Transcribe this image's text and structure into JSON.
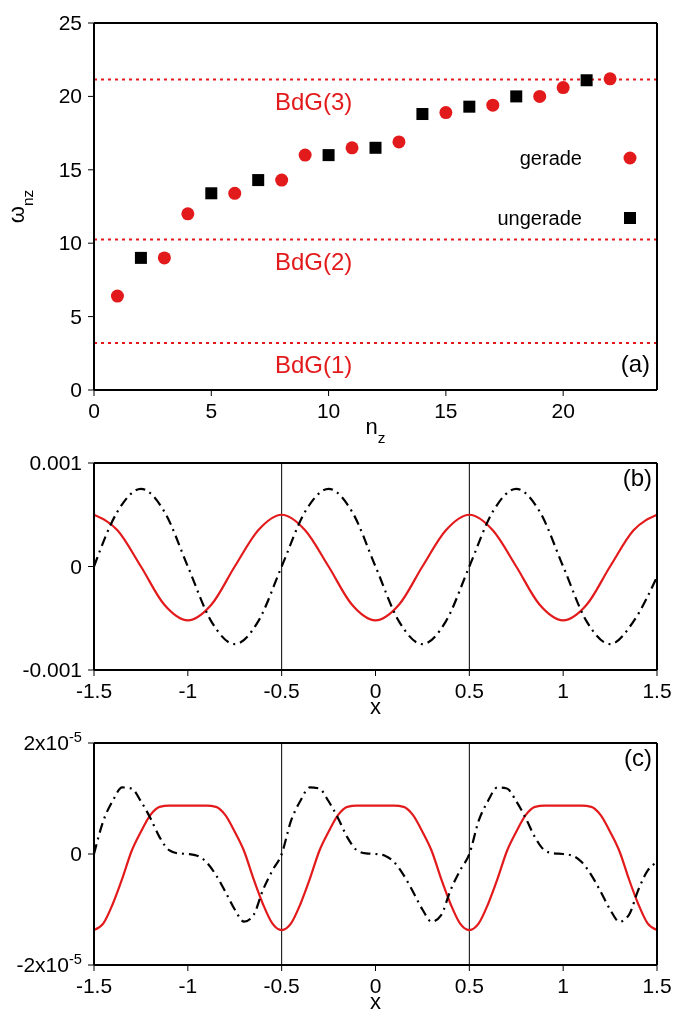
{
  "chart_data": [
    {
      "type": "scatter",
      "xlabel": "n$_{z}$",
      "ylabel": "ω$_{n}$$_{z}$",
      "xlim": [
        0,
        24
      ],
      "xticks": [
        0,
        5,
        10,
        15,
        20
      ],
      "ylim": [
        0,
        25
      ],
      "yticks": [
        0,
        5,
        10,
        15,
        20,
        25
      ],
      "legend": "right",
      "annotations": [
        "(a)"
      ],
      "series": [
        {
          "name": "gerade",
          "color": "#e31a1c",
          "marker": "circle",
          "x": [
            1,
            3,
            4,
            6,
            8,
            9,
            11,
            13,
            15,
            17,
            19,
            20,
            22
          ],
          "values": [
            6.4,
            9.0,
            12.0,
            13.4,
            14.3,
            16.0,
            16.5,
            16.9,
            18.9,
            19.4,
            20.0,
            20.6,
            21.2
          ]
        },
        {
          "name": "ungerade",
          "color": "#000000",
          "marker": "square",
          "x": [
            2,
            5,
            7,
            10,
            12,
            14,
            16,
            18,
            21
          ],
          "values": [
            9.0,
            13.4,
            14.3,
            16.0,
            16.5,
            18.8,
            19.3,
            20.0,
            21.1
          ]
        }
      ],
      "ref_lines": [
        {
          "axis": "y",
          "value": 21.15,
          "label": "BdG(3)",
          "color": "#e31a1c",
          "line_style": "dotted"
        },
        {
          "axis": "y",
          "value": 10.25,
          "label": "BdG(2)",
          "color": "#e31a1c",
          "line_style": "dotted"
        },
        {
          "axis": "y",
          "value": 3.2,
          "label": "BdG(1)",
          "color": "#e31a1c",
          "line_style": "dotted"
        }
      ]
    },
    {
      "type": "line",
      "xlabel": "x",
      "xlim": [
        -1.5,
        1.5
      ],
      "xticks": [
        -1.5,
        -1,
        -0.5,
        0,
        0.5,
        1,
        1.5
      ],
      "ylim": [
        -0.001,
        0.001
      ],
      "yticks": [
        -0.001,
        0,
        0.001
      ],
      "annotations": [
        "(b)"
      ],
      "x": [
        -1.5,
        -1.375,
        -1.25,
        -1.125,
        -1,
        -0.875,
        -0.75,
        -0.625,
        -0.5,
        -0.375,
        -0.25,
        -0.125,
        0,
        0.125,
        0.25,
        0.375,
        0.5,
        0.625,
        0.75,
        0.875,
        1,
        1.125,
        1.25,
        1.375,
        1.5
      ],
      "series": [
        {
          "color": "#e31a1c",
          "line_style": "solid",
          "values": [
            0.0005,
            0.00035,
            0,
            -0.00037,
            -0.00052,
            -0.00037,
            0,
            0.00035,
            0.0005,
            0.00035,
            0,
            -0.00037,
            -0.00052,
            -0.00037,
            0,
            0.00035,
            0.0005,
            0.00035,
            0,
            -0.00037,
            -0.00052,
            -0.00037,
            0,
            0.00035,
            0.0005
          ]
        },
        {
          "color": "#000000",
          "line_style": "dashed",
          "values": [
            0,
            0.00053,
            0.00075,
            0.00053,
            0,
            -0.00053,
            -0.00075,
            -0.00053,
            0,
            0.00053,
            0.00075,
            0.00053,
            0,
            -0.00053,
            -0.00075,
            -0.00053,
            0,
            0.00053,
            0.00075,
            0.00053,
            0,
            -0.00053,
            -0.00075,
            -0.00053,
            -0.0001
          ]
        }
      ],
      "ref_lines": [
        {
          "axis": "x",
          "value": -0.5,
          "color": "#000000",
          "line_style": "solid"
        },
        {
          "axis": "x",
          "value": 0.5,
          "color": "#000000",
          "line_style": "solid"
        }
      ]
    },
    {
      "type": "line",
      "xlabel": "x",
      "xlim": [
        -1.5,
        1.5
      ],
      "xticks": [
        -1.5,
        -1,
        -0.5,
        0,
        0.5,
        1,
        1.5
      ],
      "ylim": [
        -2e-05,
        2e-05
      ],
      "yticks": [
        {
          "value": -2e-05,
          "label": "-2x10$^{-5}$"
        },
        0,
        {
          "value": 2e-05,
          "label": "2x10$^{-5}$"
        }
      ],
      "annotations": [
        "(c)"
      ],
      "x": [
        -1.5,
        -1.45,
        -1.4,
        -1.35,
        -1.3,
        -1.25,
        -1.2,
        -1.15,
        -1.1,
        -1.05,
        -1,
        -0.95,
        -0.9,
        -0.85,
        -0.8,
        -0.75,
        -0.7,
        -0.65,
        -0.6,
        -0.55,
        -0.5,
        -0.45,
        -0.4,
        -0.35,
        -0.3,
        -0.25,
        -0.2,
        -0.15,
        -0.1,
        -0.05,
        0,
        0.05,
        0.1,
        0.15,
        0.2,
        0.25,
        0.3,
        0.35,
        0.4,
        0.45,
        0.5,
        0.55,
        0.6,
        0.65,
        0.7,
        0.75,
        0.8,
        0.85,
        0.9,
        0.95,
        1,
        1.05,
        1.1,
        1.15,
        1.2,
        1.25,
        1.3,
        1.35,
        1.4,
        1.45,
        1.5
      ],
      "series": [
        {
          "color": "#e31a1c",
          "line_style": "solid",
          "values": [
            -1.37e-05,
            -1.25e-05,
            -9e-06,
            -4.5e-06,
            5e-07,
            4e-06,
            7e-06,
            8.5e-06,
            8.7e-06,
            8.7e-06,
            8.7e-06,
            8.7e-06,
            8.7e-06,
            8.5e-06,
            7e-06,
            4e-06,
            5e-07,
            -4.5e-06,
            -9e-06,
            -1.25e-05,
            -1.37e-05,
            -1.25e-05,
            -9e-06,
            -4.5e-06,
            5e-07,
            4e-06,
            7e-06,
            8.5e-06,
            8.7e-06,
            8.7e-06,
            8.7e-06,
            8.7e-06,
            8.7e-06,
            8.5e-06,
            7e-06,
            4e-06,
            5e-07,
            -4.5e-06,
            -9e-06,
            -1.25e-05,
            -1.37e-05,
            -1.25e-05,
            -9e-06,
            -4.5e-06,
            5e-07,
            4e-06,
            7e-06,
            8.5e-06,
            8.7e-06,
            8.7e-06,
            8.7e-06,
            8.7e-06,
            8.7e-06,
            8.5e-06,
            7e-06,
            4e-06,
            5e-07,
            -4.5e-06,
            -9e-06,
            -1.25e-05,
            -1.37e-05
          ]
        },
        {
          "color": "#000000",
          "line_style": "dashed",
          "values": [
            0,
            6e-06,
            9.6e-06,
            1.2e-05,
            1.18e-05,
            9.5e-06,
            6.5e-06,
            3e-06,
            7e-07,
            1e-07,
            0,
            -3e-07,
            -1.5e-06,
            -3.8e-06,
            -6.8e-06,
            -1e-05,
            -1.22e-05,
            -1.1e-05,
            -6.5e-06,
            -3e-06,
            0,
            6e-06,
            9.6e-06,
            1.2e-05,
            1.18e-05,
            9.5e-06,
            6.5e-06,
            3e-06,
            7e-07,
            1e-07,
            0,
            -3e-07,
            -1.5e-06,
            -3.8e-06,
            -6.8e-06,
            -1e-05,
            -1.22e-05,
            -1.1e-05,
            -6.5e-06,
            -3e-06,
            0,
            6e-06,
            9.6e-06,
            1.2e-05,
            1.18e-05,
            9.5e-06,
            6.5e-06,
            3e-06,
            7e-07,
            1e-07,
            0,
            -3e-07,
            -1.5e-06,
            -3.8e-06,
            -6.8e-06,
            -1e-05,
            -1.22e-05,
            -1.1e-05,
            -6.5e-06,
            -3e-06,
            -1.5e-06
          ]
        }
      ],
      "ref_lines": [
        {
          "axis": "x",
          "value": -0.5,
          "color": "#000000",
          "line_style": "solid"
        },
        {
          "axis": "x",
          "value": 0.5,
          "color": "#000000",
          "line_style": "solid"
        }
      ]
    }
  ]
}
